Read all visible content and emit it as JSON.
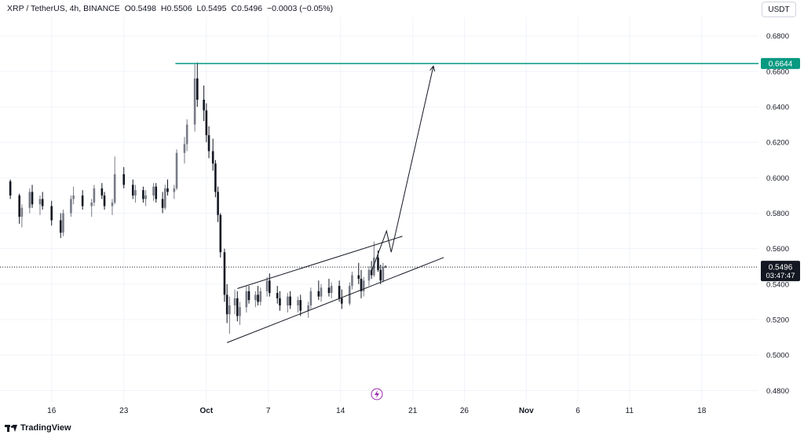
{
  "legend": {
    "symbol": "XRP / TetherUS, 4h, BINANCE",
    "open": "O0.5498",
    "high": "H0.5506",
    "low": "L0.5495",
    "close": "C0.5496",
    "change": "−0.0003 (−0.05%)"
  },
  "currency_label": "USDT",
  "brand": "TradingView",
  "colors": {
    "bull": "#787b86",
    "bear": "#131722",
    "target_line": "#089981",
    "current_price_bg": "#131722"
  },
  "chart_data": {
    "type": "candlestick",
    "title": "XRP / TetherUS, 4h, BINANCE",
    "y_ticks": [
      "0.6800",
      "0.6600",
      "0.6400",
      "0.6200",
      "0.6000",
      "0.5800",
      "0.5600",
      "0.5400",
      "0.5200",
      "0.5000",
      "0.4800"
    ],
    "x_ticks": [
      "16",
      "23",
      "Oct",
      "7",
      "14",
      "21",
      "26",
      "Nov",
      "6",
      "11",
      "18"
    ],
    "ylim": [
      0.4735,
      0.6905
    ],
    "grid": true,
    "target_level": {
      "label": "0.6644",
      "value": 0.6644
    },
    "current_price": {
      "label": "0.5496",
      "value": 0.5496,
      "countdown": "03:47:47"
    },
    "annotations": {
      "channel_upper": [
        [
          "2023-10-04",
          0.5375
        ],
        [
          "2023-10-20",
          0.567
        ]
      ],
      "channel_lower": [
        [
          "2023-10-03",
          0.507
        ],
        [
          "2023-10-24",
          0.555
        ]
      ],
      "projection_path": [
        [
          "2023-10-17",
          0.547
        ],
        [
          "2023-10-18",
          0.57
        ],
        [
          "2023-10-18",
          0.558
        ],
        [
          "2023-10-23",
          0.663
        ]
      ],
      "target_line_start": "2023-09-28"
    },
    "candles": [
      [
        "2023-09-12",
        0.598,
        0.599,
        0.588,
        0.59
      ],
      [
        "2023-09-13",
        0.59,
        0.591,
        0.574,
        0.578
      ],
      [
        "2023-09-13",
        0.578,
        0.585,
        0.572,
        0.583
      ],
      [
        "2023-09-14",
        0.583,
        0.594,
        0.58,
        0.592
      ],
      [
        "2023-09-14",
        0.592,
        0.596,
        0.583,
        0.585
      ],
      [
        "2023-09-15",
        0.585,
        0.59,
        0.579,
        0.588
      ],
      [
        "2023-09-15",
        0.588,
        0.592,
        0.582,
        0.584
      ],
      [
        "2023-09-16",
        0.584,
        0.587,
        0.573,
        0.576
      ],
      [
        "2023-09-17",
        0.576,
        0.58,
        0.566,
        0.569
      ],
      [
        "2023-09-17",
        0.569,
        0.582,
        0.567,
        0.58
      ],
      [
        "2023-09-18",
        0.58,
        0.59,
        0.578,
        0.588
      ],
      [
        "2023-09-18",
        0.588,
        0.595,
        0.585,
        0.59
      ],
      [
        "2023-09-19",
        0.59,
        0.593,
        0.582,
        0.584
      ],
      [
        "2023-09-20",
        0.584,
        0.588,
        0.578,
        0.586
      ],
      [
        "2023-09-20",
        0.586,
        0.596,
        0.584,
        0.594
      ],
      [
        "2023-09-21",
        0.594,
        0.597,
        0.588,
        0.59
      ],
      [
        "2023-09-21",
        0.59,
        0.592,
        0.582,
        0.584
      ],
      [
        "2023-09-22",
        0.584,
        0.588,
        0.579,
        0.586
      ],
      [
        "2023-09-22",
        0.586,
        0.612,
        0.585,
        0.602
      ],
      [
        "2023-09-23",
        0.602,
        0.606,
        0.594,
        0.596
      ],
      [
        "2023-09-24",
        0.596,
        0.599,
        0.588,
        0.59
      ],
      [
        "2023-09-24",
        0.59,
        0.596,
        0.586,
        0.593
      ],
      [
        "2023-09-25",
        0.593,
        0.595,
        0.586,
        0.588
      ],
      [
        "2023-09-25",
        0.588,
        0.593,
        0.584,
        0.59
      ],
      [
        "2023-09-26",
        0.59,
        0.597,
        0.587,
        0.595
      ],
      [
        "2023-09-26",
        0.595,
        0.597,
        0.586,
        0.588
      ],
      [
        "2023-09-27",
        0.588,
        0.592,
        0.58,
        0.583
      ],
      [
        "2023-09-27",
        0.583,
        0.596,
        0.582,
        0.594
      ],
      [
        "2023-09-27",
        0.594,
        0.599,
        0.59,
        0.592
      ],
      [
        "2023-09-28",
        0.592,
        0.596,
        0.588,
        0.594
      ],
      [
        "2023-09-28",
        0.594,
        0.616,
        0.593,
        0.614
      ],
      [
        "2023-09-29",
        0.614,
        0.623,
        0.608,
        0.619
      ],
      [
        "2023-09-29",
        0.619,
        0.633,
        0.615,
        0.63
      ],
      [
        "2023-09-30",
        0.63,
        0.664,
        0.626,
        0.656
      ],
      [
        "2023-09-30",
        0.656,
        0.665,
        0.64,
        0.644
      ],
      [
        "2023-10-01",
        0.644,
        0.652,
        0.632,
        0.638
      ],
      [
        "2023-10-01",
        0.638,
        0.642,
        0.62,
        0.624
      ],
      [
        "2023-10-01",
        0.624,
        0.629,
        0.611,
        0.615
      ],
      [
        "2023-10-02",
        0.615,
        0.622,
        0.604,
        0.608
      ],
      [
        "2023-10-02",
        0.608,
        0.61,
        0.589,
        0.592
      ],
      [
        "2023-10-02",
        0.592,
        0.595,
        0.575,
        0.579
      ],
      [
        "2023-10-02",
        0.579,
        0.58,
        0.555,
        0.558
      ],
      [
        "2023-10-03",
        0.558,
        0.56,
        0.53,
        0.534
      ],
      [
        "2023-10-03",
        0.534,
        0.54,
        0.518,
        0.523
      ],
      [
        "2023-10-03",
        0.523,
        0.533,
        0.512,
        0.528
      ],
      [
        "2023-10-04",
        0.528,
        0.537,
        0.523,
        0.532
      ],
      [
        "2023-10-04",
        0.532,
        0.536,
        0.519,
        0.522
      ],
      [
        "2023-10-04",
        0.522,
        0.53,
        0.517,
        0.527
      ],
      [
        "2023-10-05",
        0.527,
        0.539,
        0.524,
        0.536
      ],
      [
        "2023-10-05",
        0.536,
        0.539,
        0.529,
        0.531
      ],
      [
        "2023-10-06",
        0.531,
        0.536,
        0.527,
        0.534
      ],
      [
        "2023-10-06",
        0.534,
        0.539,
        0.528,
        0.53
      ],
      [
        "2023-10-06",
        0.53,
        0.538,
        0.528,
        0.536
      ],
      [
        "2023-10-07",
        0.536,
        0.544,
        0.533,
        0.542
      ],
      [
        "2023-10-07",
        0.542,
        0.546,
        0.533,
        0.535
      ],
      [
        "2023-10-08",
        0.535,
        0.539,
        0.529,
        0.532
      ],
      [
        "2023-10-08",
        0.532,
        0.536,
        0.525,
        0.528
      ],
      [
        "2023-10-09",
        0.528,
        0.535,
        0.524,
        0.533
      ],
      [
        "2023-10-09",
        0.533,
        0.536,
        0.526,
        0.528
      ],
      [
        "2023-10-10",
        0.528,
        0.533,
        0.524,
        0.531
      ],
      [
        "2023-10-10",
        0.531,
        0.534,
        0.522,
        0.525
      ],
      [
        "2023-10-11",
        0.525,
        0.53,
        0.521,
        0.528
      ],
      [
        "2023-10-11",
        0.528,
        0.538,
        0.526,
        0.536
      ],
      [
        "2023-10-12",
        0.536,
        0.542,
        0.531,
        0.533
      ],
      [
        "2023-10-12",
        0.533,
        0.54,
        0.53,
        0.538
      ],
      [
        "2023-10-13",
        0.538,
        0.543,
        0.533,
        0.535
      ],
      [
        "2023-10-13",
        0.535,
        0.541,
        0.532,
        0.539
      ],
      [
        "2023-10-14",
        0.539,
        0.542,
        0.53,
        0.532
      ],
      [
        "2023-10-14",
        0.532,
        0.537,
        0.526,
        0.529
      ],
      [
        "2023-10-15",
        0.529,
        0.541,
        0.528,
        0.539
      ],
      [
        "2023-10-15",
        0.539,
        0.547,
        0.537,
        0.545
      ],
      [
        "2023-10-16",
        0.545,
        0.552,
        0.54,
        0.543
      ],
      [
        "2023-10-16",
        0.543,
        0.548,
        0.532,
        0.536
      ],
      [
        "2023-10-16",
        0.536,
        0.544,
        0.533,
        0.542
      ],
      [
        "2023-10-17",
        0.542,
        0.55,
        0.539,
        0.548
      ],
      [
        "2023-10-17",
        0.548,
        0.553,
        0.543,
        0.545
      ],
      [
        "2023-10-17",
        0.545,
        0.564,
        0.544,
        0.555
      ],
      [
        "2023-10-18",
        0.555,
        0.559,
        0.547,
        0.548
      ],
      [
        "2023-10-18",
        0.548,
        0.551,
        0.54,
        0.542
      ],
      [
        "2023-10-18",
        0.542,
        0.552,
        0.541,
        0.5498
      ],
      [
        "2023-10-18",
        0.5498,
        0.5506,
        0.5495,
        0.5496
      ]
    ]
  }
}
